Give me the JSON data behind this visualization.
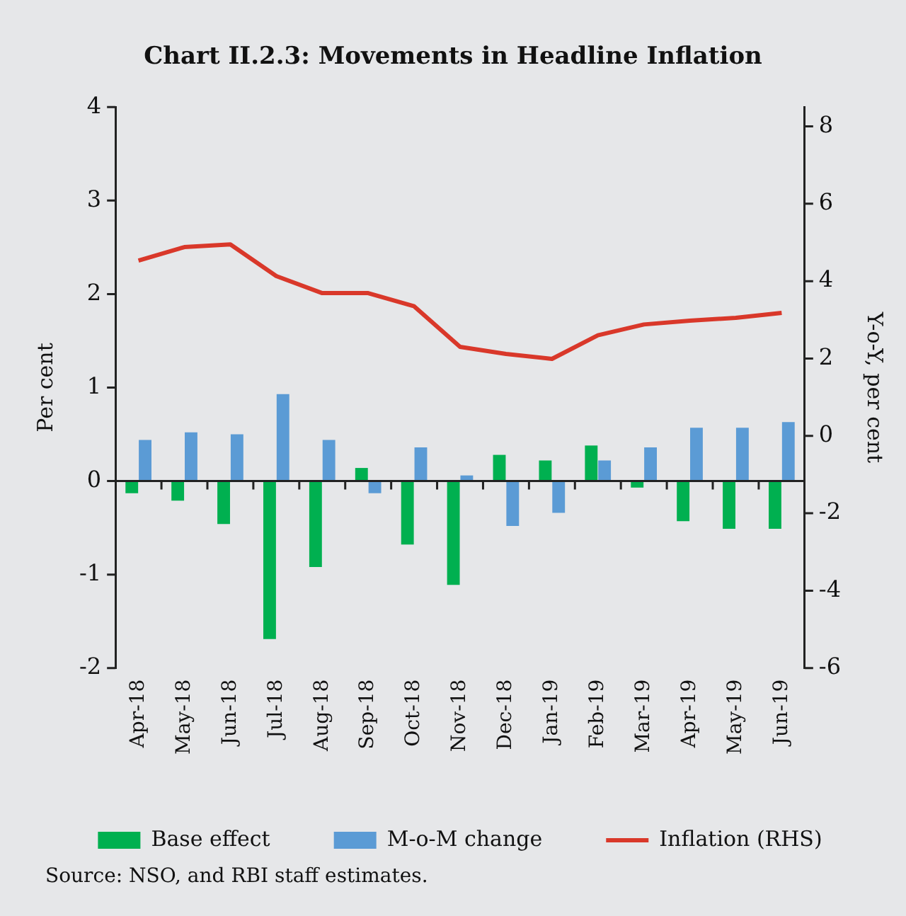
{
  "chart_data": {
    "type": "bar",
    "title": "Chart II.2.3: Movements in Headline Inflation",
    "categories": [
      "Apr-18",
      "May-18",
      "Jun-18",
      "Jul-18",
      "Aug-18",
      "Sep-18",
      "Oct-18",
      "Nov-18",
      "Dec-18",
      "Jan-19",
      "Feb-19",
      "Mar-19",
      "Apr-19",
      "May-19",
      "Jun-19"
    ],
    "series": [
      {
        "name": "Base effect",
        "color": "#00b050",
        "values": [
          -0.13,
          -0.21,
          -0.46,
          -1.69,
          -0.92,
          0.14,
          -0.68,
          -1.11,
          0.28,
          0.22,
          0.38,
          -0.07,
          -0.43,
          -0.51,
          -0.51
        ]
      },
      {
        "name": "M-o-M change",
        "color": "#5b9bd5",
        "values": [
          0.44,
          0.52,
          0.5,
          0.93,
          0.44,
          -0.13,
          0.36,
          0.06,
          -0.48,
          -0.34,
          0.22,
          0.36,
          0.57,
          0.57,
          0.63
        ]
      },
      {
        "name": "Inflation (RHS)",
        "type": "line",
        "axis": "y2",
        "color": "#d9382a",
        "values": [
          4.53,
          4.88,
          4.95,
          4.13,
          3.69,
          3.69,
          3.35,
          2.3,
          2.12,
          1.99,
          2.6,
          2.88,
          2.98,
          3.05,
          3.18
        ]
      }
    ],
    "ylabel": "Per cent",
    "y2label": "Y-o-Y, per cent",
    "ylim": [
      -2,
      4
    ],
    "yticks": [
      -2,
      -1,
      0,
      1,
      2,
      3,
      4
    ],
    "y2lim": [
      -6,
      8.5
    ],
    "y2ticks": [
      -6,
      -4,
      -2,
      0,
      2,
      4,
      6,
      8
    ],
    "grid": false,
    "ref_lines": [
      {
        "axis": "y",
        "value": 0,
        "color": "#222222"
      }
    ],
    "legend": "bottom",
    "marker": "none",
    "annotations": [
      "Source: NSO, and RBI staff estimates."
    ]
  }
}
